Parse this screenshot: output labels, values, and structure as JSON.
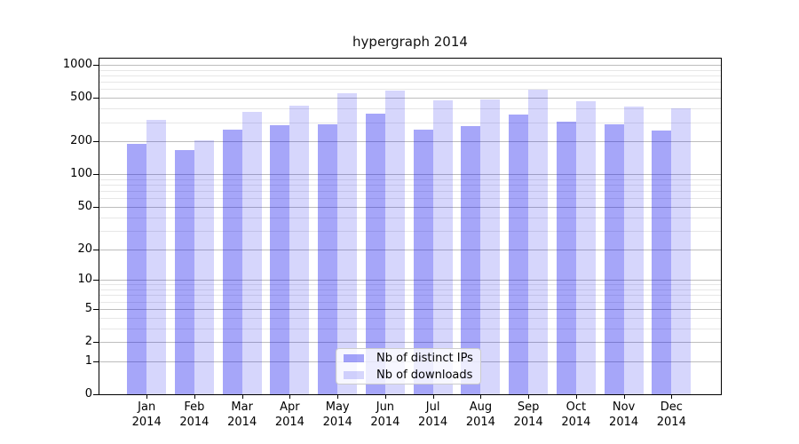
{
  "title": "hypergraph 2014",
  "chart_data": {
    "type": "bar",
    "title": "hypergraph 2014",
    "categories": [
      "Jan 2014",
      "Feb 2014",
      "Mar 2014",
      "Apr 2014",
      "May 2014",
      "Jun 2014",
      "Jul 2014",
      "Aug 2014",
      "Sep 2014",
      "Oct 2014",
      "Nov 2014",
      "Dec 2014"
    ],
    "series": [
      {
        "name": "Nb of distinct IPs",
        "color": "#0000EE59",
        "values": [
          190,
          168,
          255,
          283,
          286,
          358,
          257,
          274,
          349,
          301,
          288,
          252
        ]
      },
      {
        "name": "Nb of downloads",
        "color": "#0000EE29",
        "values": [
          315,
          205,
          375,
          425,
          551,
          579,
          471,
          483,
          597,
          463,
          418,
          403
        ]
      }
    ],
    "yscale": "log1p",
    "ylim": [
      0,
      1140
    ],
    "y_major_ticks": [
      0,
      1,
      2,
      5,
      10,
      20,
      50,
      100,
      200,
      500,
      1000
    ],
    "y_minor_ticks": [
      3,
      4,
      6,
      7,
      8,
      9,
      30,
      40,
      60,
      70,
      80,
      90,
      300,
      400,
      600,
      700,
      800,
      900
    ],
    "grid": "horizontal-on",
    "legend_position": "lower-center",
    "xlabel": "",
    "ylabel": ""
  }
}
